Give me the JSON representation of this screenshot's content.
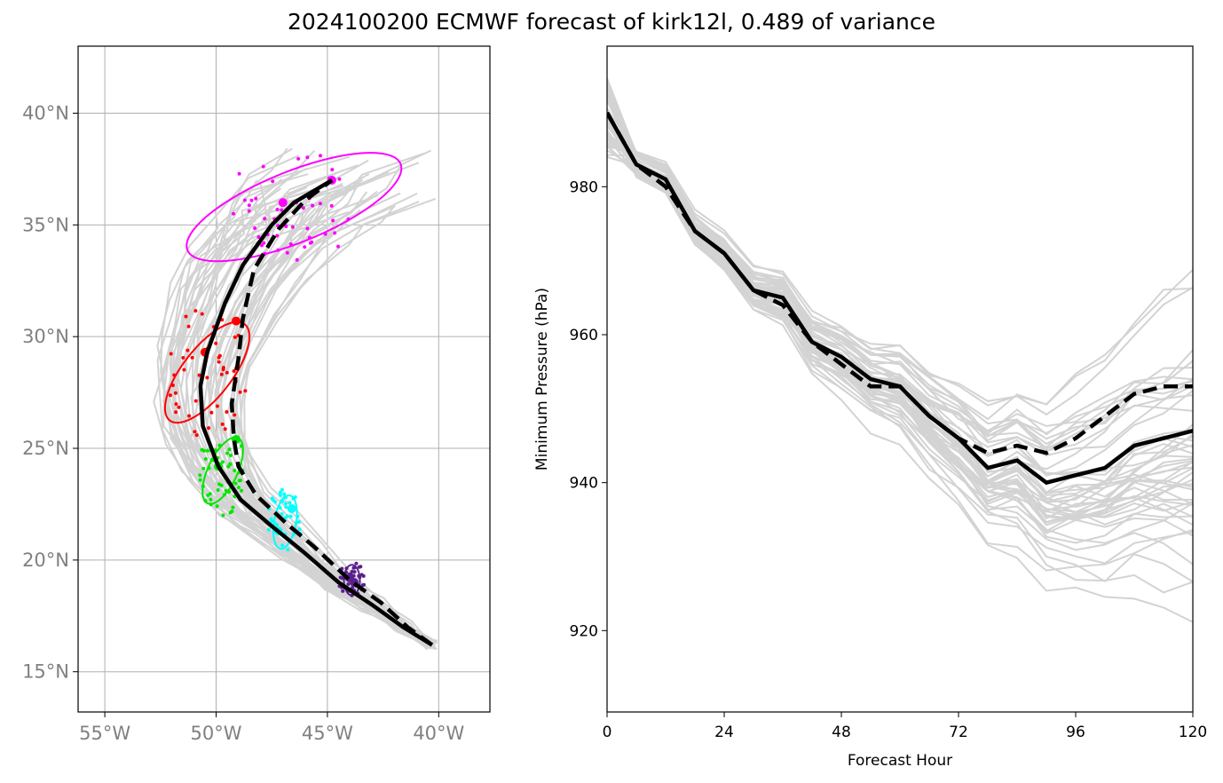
{
  "title": "2024100200 ECMWF forecast of kirk12l, 0.489 of variance",
  "map_panel": {
    "lon_ticks": [
      "55°W",
      "50°W",
      "45°W",
      "40°W"
    ],
    "lat_ticks": [
      "15°N",
      "20°N",
      "25°N",
      "30°N",
      "35°N",
      "40°N"
    ],
    "lon_range": [
      -56.2,
      -37.7
    ],
    "lat_range": [
      13.2,
      43.0
    ],
    "cluster_colors": {
      "day1": "#5b1f8f",
      "day2": "#00ffff",
      "day3": "#00e600",
      "day4": "#ff0000",
      "day5": "#ff00ff"
    },
    "member_track_color": "#d3d3d3"
  },
  "chart_data": {
    "type": "line",
    "xlabel": "Forecast Hour",
    "ylabel": "Minimum Pressure (hPa)",
    "xlim": [
      0,
      120
    ],
    "ylim": [
      909,
      999
    ],
    "x_ticks": [
      0,
      24,
      48,
      72,
      96,
      120
    ],
    "y_ticks": [
      920,
      940,
      960,
      980
    ],
    "grid": false,
    "x": [
      0,
      6,
      12,
      18,
      24,
      30,
      36,
      42,
      48,
      54,
      60,
      66,
      72,
      78,
      84,
      90,
      96,
      102,
      108,
      114,
      120
    ],
    "series": [
      {
        "style": "solid",
        "values": [
          990,
          983,
          981,
          974,
          971,
          966,
          965,
          959,
          957,
          954,
          953,
          949,
          946,
          942,
          943,
          940,
          941,
          942,
          945,
          946,
          947
        ]
      },
      {
        "style": "dashed",
        "values": [
          990,
          983,
          980,
          974,
          971,
          966,
          964,
          959,
          956,
          953,
          953,
          949,
          946,
          944,
          945,
          944,
          946,
          949,
          952,
          953,
          953
        ]
      }
    ]
  }
}
